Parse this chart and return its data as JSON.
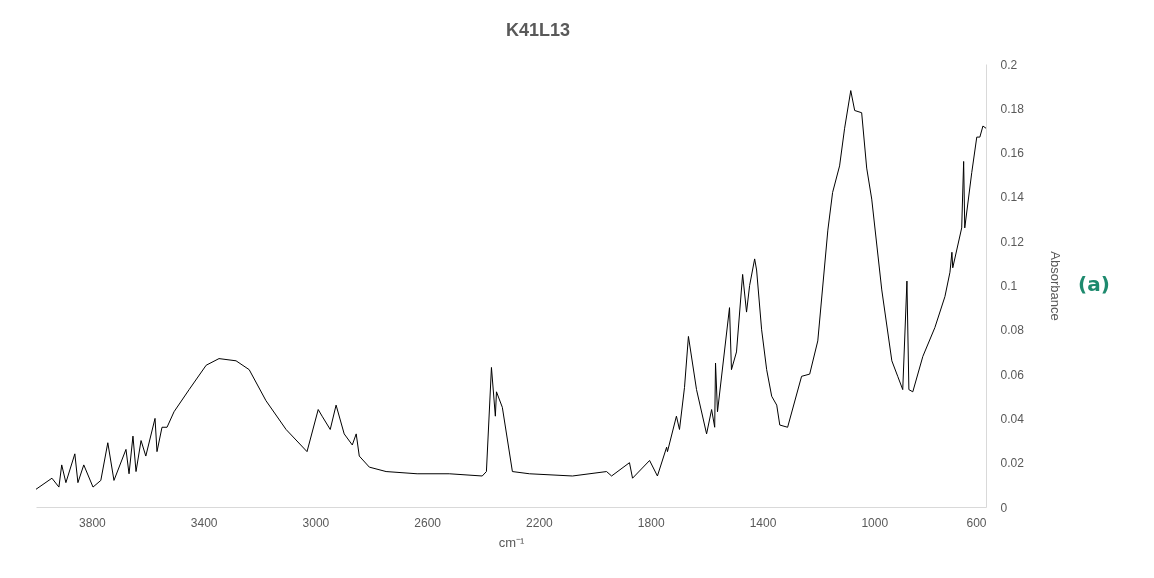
{
  "chart_data": {
    "type": "line",
    "title": "K41L13",
    "xlabel": "cm⁻¹",
    "ylabel": "Absorbance",
    "annotations": [
      "(a)"
    ],
    "x": [
      4000,
      3943,
      3918,
      3908,
      3893,
      3861,
      3850,
      3829,
      3796,
      3768,
      3743,
      3721,
      3678,
      3667,
      3653,
      3642,
      3624,
      3607,
      3574,
      3567,
      3549,
      3531,
      3506,
      3452,
      3391,
      3345,
      3284,
      3237,
      3177,
      3105,
      3030,
      2990,
      2976,
      2947,
      2926,
      2897,
      2868,
      2854,
      2843,
      2807,
      2747,
      2636,
      2521,
      2403,
      2388,
      2370,
      2356,
      2352,
      2331,
      2295,
      2234,
      2080,
      1958,
      1940,
      1876,
      1865,
      1804,
      1776,
      1743,
      1740,
      1708,
      1697,
      1679,
      1665,
      1636,
      1600,
      1582,
      1571,
      1568,
      1561,
      1518,
      1511,
      1493,
      1471,
      1457,
      1446,
      1428,
      1421,
      1403,
      1385,
      1367,
      1349,
      1338,
      1310,
      1260,
      1231,
      1202,
      1166,
      1149,
      1124,
      1106,
      1084,
      1070,
      1045,
      1027,
      1009,
      973,
      937,
      916,
      898,
      883,
      876,
      862,
      826,
      783,
      747,
      729,
      722,
      719,
      687,
      680,
      676,
      651,
      633,
      622,
      611,
      600
    ],
    "series": [
      {
        "color": "#000000",
        "values": [
          0.008,
          0.013,
          0.009,
          0.019,
          0.011,
          0.024,
          0.011,
          0.019,
          0.009,
          0.012,
          0.029,
          0.012,
          0.026,
          0.015,
          0.032,
          0.016,
          0.03,
          0.023,
          0.04,
          0.025,
          0.036,
          0.036,
          0.043,
          0.053,
          0.064,
          0.067,
          0.066,
          0.062,
          0.048,
          0.035,
          0.025,
          0.044,
          0.041,
          0.035,
          0.046,
          0.033,
          0.028,
          0.033,
          0.023,
          0.018,
          0.016,
          0.015,
          0.015,
          0.014,
          0.016,
          0.063,
          0.041,
          0.052,
          0.045,
          0.016,
          0.015,
          0.014,
          0.016,
          0.014,
          0.02,
          0.013,
          0.021,
          0.014,
          0.027,
          0.025,
          0.041,
          0.035,
          0.054,
          0.077,
          0.053,
          0.033,
          0.044,
          0.036,
          0.065,
          0.043,
          0.09,
          0.062,
          0.07,
          0.105,
          0.088,
          0.1,
          0.112,
          0.107,
          0.08,
          0.062,
          0.05,
          0.046,
          0.037,
          0.036,
          0.059,
          0.06,
          0.075,
          0.125,
          0.142,
          0.154,
          0.171,
          0.188,
          0.179,
          0.178,
          0.153,
          0.139,
          0.098,
          0.066,
          0.059,
          0.053,
          0.102,
          0.053,
          0.052,
          0.068,
          0.081,
          0.095,
          0.106,
          0.115,
          0.108,
          0.126,
          0.156,
          0.126,
          0.151,
          0.167,
          0.167,
          0.172,
          0.171
        ]
      }
    ],
    "xlim": [
      4000,
      600
    ],
    "xticks": [
      3800,
      3400,
      3000,
      2600,
      2200,
      1800,
      1400,
      1000,
      600
    ],
    "ylim": [
      0,
      0.2
    ],
    "yticks": [
      0,
      0.02,
      0.04,
      0.06,
      0.08,
      0.1,
      0.12,
      0.14,
      0.16,
      0.18,
      0.2
    ],
    "grid": false,
    "marker": "none",
    "line_style": "solid"
  }
}
